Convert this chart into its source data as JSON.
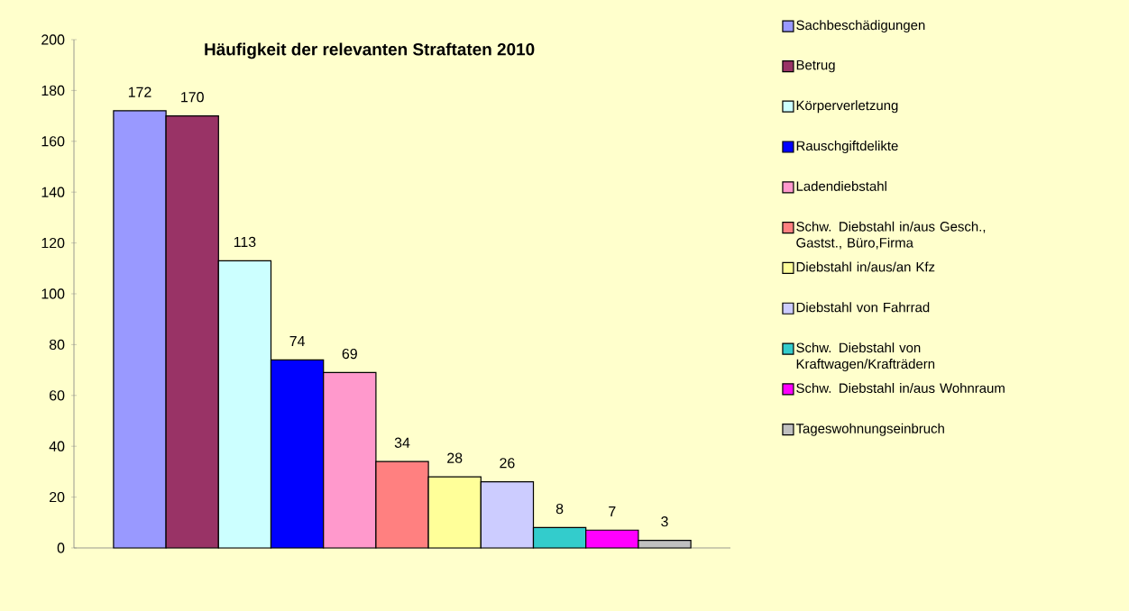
{
  "chart_data": {
    "type": "bar",
    "title": "Häufigkeit der relevanten Straftaten 2010",
    "categories": [
      null
    ],
    "series": [
      {
        "name": "Sachbeschädigungen",
        "color": "#9999ff",
        "values": [
          172
        ]
      },
      {
        "name": "Betrug",
        "color": "#993366",
        "values": [
          170
        ]
      },
      {
        "name": "Körperverletzung",
        "color": "#ccffff",
        "values": [
          113
        ]
      },
      {
        "name": "Rauschgiftdelikte",
        "color": "#0000ff",
        "values": [
          74
        ]
      },
      {
        "name": "Ladendiebstahl",
        "color": "#ff99cc",
        "values": [
          69
        ]
      },
      {
        "name": "Schw. Diebstahl in/aus Gesch., Gastst., Büro,Firma",
        "color": "#ff8080",
        "values": [
          34
        ]
      },
      {
        "name": "Diebstahl in/aus/an Kfz",
        "color": "#ffff99",
        "values": [
          28
        ]
      },
      {
        "name": "Diebstahl von Fahrrad",
        "color": "#ccccff",
        "values": [
          26
        ]
      },
      {
        "name": "Schw. Diebstahl von Kraftwagen/Krafträdern",
        "color": "#33cccc",
        "values": [
          8
        ]
      },
      {
        "name": "Schw. Diebstahl in/aus Wohnraum",
        "color": "#ff00ff",
        "values": [
          7
        ]
      },
      {
        "name": "Tageswohnungseinbruch",
        "color": "#c0c0c0",
        "values": [
          3
        ]
      }
    ],
    "ylim": [
      0,
      200
    ],
    "yticks": [
      0,
      20,
      40,
      60,
      80,
      100,
      120,
      140,
      160,
      180,
      200
    ],
    "data_labels": true,
    "grid": false,
    "legend": "right"
  }
}
